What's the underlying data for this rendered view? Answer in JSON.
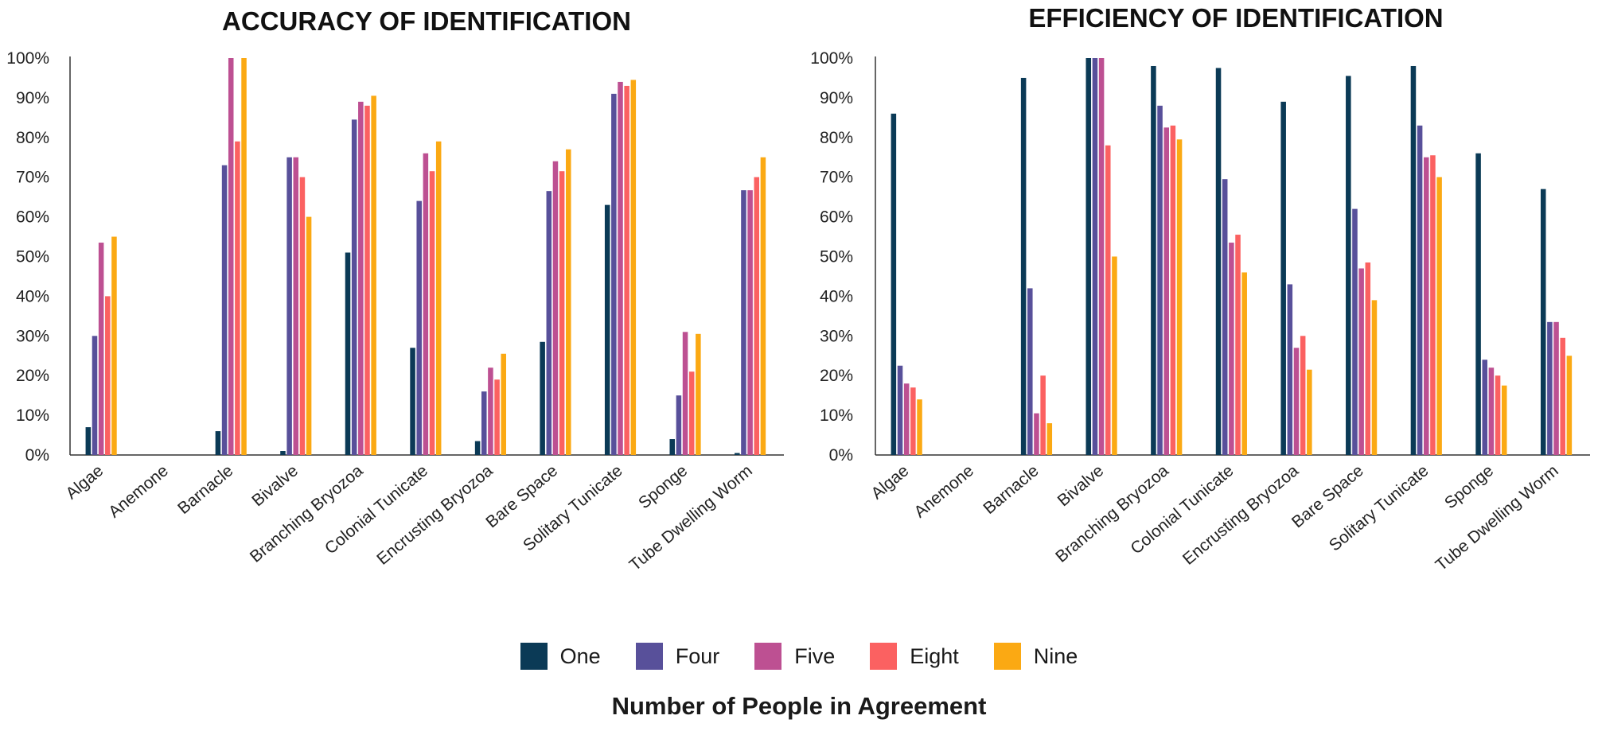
{
  "chart_data": [
    {
      "type": "bar",
      "title": "ACCURACY OF IDENTIFICATION",
      "ylabel": "",
      "ylim": [
        0,
        100
      ],
      "yticks": [
        "0%",
        "10%",
        "20%",
        "30%",
        "40%",
        "50%",
        "60%",
        "70%",
        "80%",
        "90%",
        "100%"
      ],
      "categories": [
        "Algae",
        "Anemone",
        "Barnacle",
        "Bivalve",
        "Branching Bryozoa",
        "Colonial Tunicate",
        "Encrusting Bryozoa",
        "Bare Space",
        "Solitary Tunicate",
        "Sponge",
        "Tube Dwelling Worm"
      ],
      "series": [
        {
          "name": "One",
          "values": [
            7,
            0,
            6,
            1,
            51,
            27,
            3.5,
            28.5,
            63,
            4,
            0.5
          ]
        },
        {
          "name": "Four",
          "values": [
            30,
            0,
            73,
            75,
            84.5,
            64,
            16,
            66.5,
            91,
            15,
            66.7
          ]
        },
        {
          "name": "Five",
          "values": [
            53.5,
            0,
            100,
            75,
            89,
            76,
            22,
            74,
            94,
            31,
            66.7
          ]
        },
        {
          "name": "Eight",
          "values": [
            40,
            0,
            79,
            70,
            88,
            71.5,
            19,
            71.5,
            93,
            21,
            70
          ]
        },
        {
          "name": "Nine",
          "values": [
            55,
            0,
            100,
            60,
            90.5,
            79,
            25.5,
            77,
            94.5,
            30.5,
            75
          ]
        }
      ]
    },
    {
      "type": "bar",
      "title": "EFFICIENCY OF IDENTIFICATION",
      "ylabel": "",
      "ylim": [
        0,
        100
      ],
      "yticks": [
        "0%",
        "10%",
        "20%",
        "30%",
        "40%",
        "50%",
        "60%",
        "70%",
        "80%",
        "90%",
        "100%"
      ],
      "categories": [
        "Algae",
        "Anemone",
        "Barnacle",
        "Bivalve",
        "Branching Bryozoa",
        "Colonial Tunicate",
        "Encrusting Bryozoa",
        "Bare Space",
        "Solitary Tunicate",
        "Sponge",
        "Tube Dwelling Worm"
      ],
      "series": [
        {
          "name": "One",
          "values": [
            86,
            0,
            95,
            100,
            98,
            97.5,
            89,
            95.5,
            98,
            76,
            67
          ]
        },
        {
          "name": "Four",
          "values": [
            22.5,
            0,
            42,
            100,
            88,
            69.5,
            43,
            62,
            83,
            24,
            33.5
          ]
        },
        {
          "name": "Five",
          "values": [
            18,
            0,
            10.5,
            100,
            82.5,
            53.5,
            27,
            47,
            75,
            22,
            33.5
          ]
        },
        {
          "name": "Eight",
          "values": [
            17,
            0,
            20,
            78,
            83,
            55.5,
            30,
            48.5,
            75.5,
            20,
            29.5
          ]
        },
        {
          "name": "Nine",
          "values": [
            14,
            0,
            8,
            50,
            79.5,
            46,
            21.5,
            39,
            70,
            17.5,
            25
          ]
        }
      ]
    }
  ],
  "colors": {
    "One": "#0b3a56",
    "Four": "#58509a",
    "Five": "#bd5092",
    "Eight": "#fb6161",
    "Nine": "#fba913"
  },
  "legend": {
    "items": [
      "One",
      "Four",
      "Five",
      "Eight",
      "Nine"
    ]
  },
  "shared_xlabel": "Number of People in Agreement"
}
